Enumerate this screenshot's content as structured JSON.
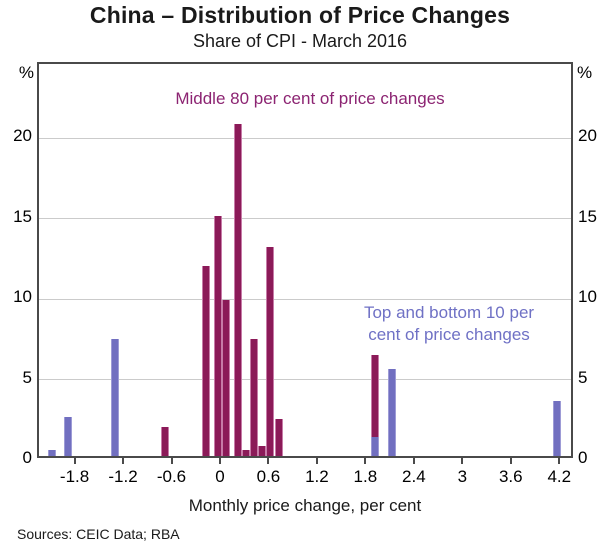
{
  "chart_data": {
    "type": "bar",
    "title": "China – Distribution of Price Changes",
    "subtitle": "Share of CPI - March 2016",
    "xlabel": "Monthly price change, per cent",
    "y_unit": "%",
    "xlim": [
      -2.265,
      4.37
    ],
    "ylim": [
      0,
      24.6
    ],
    "xticks": [
      -1.8,
      -1.2,
      -0.6,
      0,
      0.6,
      1.2,
      1.8,
      2.4,
      3,
      3.6,
      4.2
    ],
    "yticks": [
      0,
      5,
      10,
      15,
      20
    ],
    "bin_width": 0.1,
    "grid": "horizontal-gridlines",
    "legend_position": "in-plot text annotations",
    "series": [
      {
        "name": "Middle 80 per cent of price changes",
        "color": "#8B1A58",
        "edge_color": "#C77BA8",
        "points": [
          {
            "x": -0.7,
            "y": 1.8
          },
          {
            "x": -0.2,
            "y": 11.8
          },
          {
            "x": -0.05,
            "y": 14.9
          },
          {
            "x": 0.05,
            "y": 9.7
          },
          {
            "x": 0.2,
            "y": 20.6
          },
          {
            "x": 0.3,
            "y": 0.4
          },
          {
            "x": 0.4,
            "y": 7.3
          },
          {
            "x": 0.5,
            "y": 0.6
          },
          {
            "x": 0.6,
            "y": 13.0
          },
          {
            "x": 0.7,
            "y": 2.3
          },
          {
            "x": 1.9,
            "y": 6.3
          }
        ]
      },
      {
        "name": "Top and bottom 10 per cent of price changes",
        "color": "#716FC0",
        "edge_color": "#9D9BD6",
        "points": [
          {
            "x": -2.1,
            "y": 0.4
          },
          {
            "x": -1.9,
            "y": 2.4
          },
          {
            "x": -1.33,
            "y": 7.3
          },
          {
            "x": 1.9,
            "y": 1.2
          },
          {
            "x": 2.1,
            "y": 5.4
          },
          {
            "x": 4.15,
            "y": 3.4
          }
        ]
      }
    ],
    "annotations": [
      {
        "text": "Middle 80 per cent of price changes",
        "color": "#8C2472"
      },
      {
        "text": "Top and bottom 10 per\ncent of price changes",
        "color": "#6F71C5"
      }
    ]
  },
  "footer": {
    "sources": "Sources: CEIC Data; RBA"
  },
  "colors": {
    "frame": "#4a4a4a",
    "gridline": "#cbcbcb",
    "text": "#1a1a1a"
  }
}
